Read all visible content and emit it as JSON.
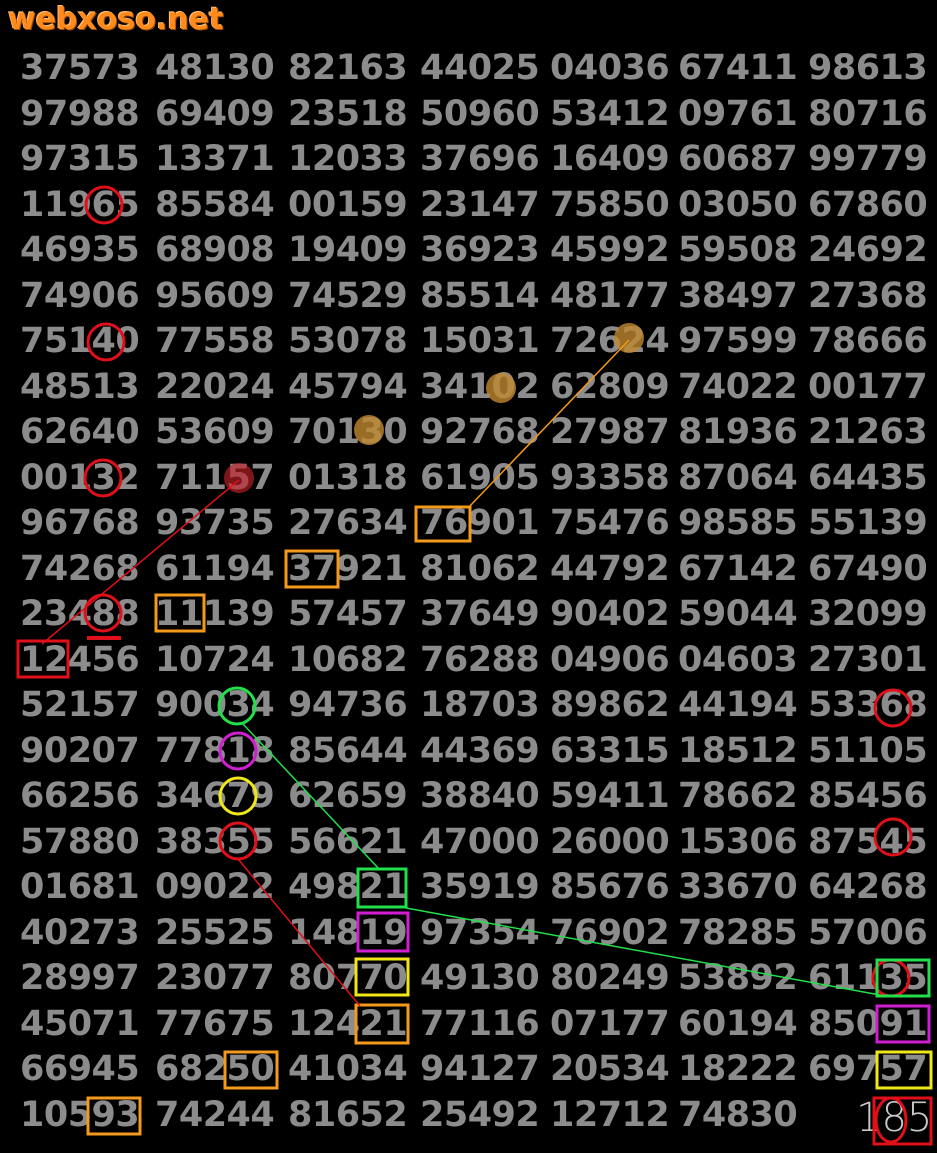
{
  "logo": "webxoso.net",
  "page_number": "185",
  "colors": {
    "background": "#000000",
    "digits": "#8c8c8c",
    "red": "#e0101a",
    "orange": "#f39a1c",
    "green": "#22e04a",
    "magenta": "#d21ed2",
    "yellow": "#f0e61a"
  },
  "rows": [
    [
      "37573",
      "48130",
      "82163",
      "44025",
      "04036",
      "67411",
      "98613"
    ],
    [
      "97988",
      "69409",
      "23518",
      "50960",
      "53412",
      "09761",
      "80716"
    ],
    [
      "97315",
      "13371",
      "12033",
      "37696",
      "16409",
      "60687",
      "99779"
    ],
    [
      "11965",
      "85584",
      "00159",
      "23147",
      "75850",
      "03050",
      "67860"
    ],
    [
      "46935",
      "68908",
      "19409",
      "36923",
      "45992",
      "59508",
      "24692"
    ],
    [
      "74906",
      "95609",
      "74529",
      "85514",
      "48177",
      "38497",
      "27368"
    ],
    [
      "75140",
      "77558",
      "53078",
      "15031",
      "72624",
      "97599",
      "78666"
    ],
    [
      "48513",
      "22024",
      "45794",
      "34102",
      "62809",
      "74022",
      "00177"
    ],
    [
      "62640",
      "53609",
      "70130",
      "92768",
      "27987",
      "81936",
      "21263"
    ],
    [
      "00132",
      "71157",
      "01318",
      "61905",
      "93358",
      "87064",
      "64435"
    ],
    [
      "96768",
      "93735",
      "27634",
      "76901",
      "75476",
      "98585",
      "55139"
    ],
    [
      "74268",
      "61194",
      "37921",
      "81062",
      "44792",
      "67142",
      "67490"
    ],
    [
      "23488",
      "11139",
      "57457",
      "37649",
      "90402",
      "59044",
      "32099"
    ],
    [
      "12456",
      "10724",
      "10682",
      "76288",
      "04906",
      "04603",
      "27301"
    ],
    [
      "52157",
      "90034",
      "94736",
      "18703",
      "89862",
      "44194",
      "53368"
    ],
    [
      "90207",
      "77818",
      "85644",
      "44369",
      "63315",
      "18512",
      "51105"
    ],
    [
      "66256",
      "34679",
      "62659",
      "38840",
      "59411",
      "78662",
      "85456"
    ],
    [
      "57880",
      "38355",
      "56621",
      "47000",
      "26000",
      "15306",
      "87545"
    ],
    [
      "01681",
      "09022",
      "49821",
      "35919",
      "85676",
      "33670",
      "64268"
    ],
    [
      "40273",
      "25525",
      "14819",
      "97354",
      "76902",
      "78285",
      "57006"
    ],
    [
      "28997",
      "23077",
      "80770",
      "49130",
      "80249",
      "53892",
      "61135"
    ],
    [
      "45071",
      "77675",
      "12421",
      "77116",
      "07177",
      "60194",
      "85091"
    ],
    [
      "66945",
      "68250",
      "41034",
      "94127",
      "20534",
      "18222",
      "69757"
    ],
    [
      "10593",
      "74244",
      "81652",
      "25492",
      "12712",
      "74830",
      ""
    ]
  ]
}
